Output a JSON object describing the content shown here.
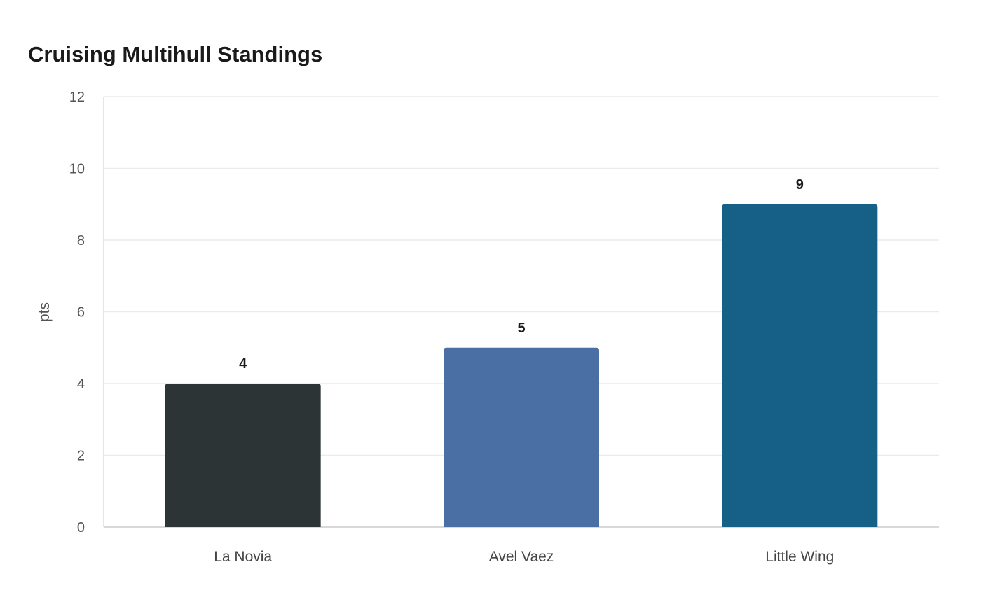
{
  "chart_data": {
    "type": "bar",
    "title": "Cruising Multihull Standings",
    "xlabel": "",
    "ylabel": "pts",
    "categories": [
      "La Novia",
      "Avel Vaez",
      "Little Wing"
    ],
    "values": [
      4,
      5,
      9
    ],
    "colors": [
      "#2d3436",
      "#4a6fa5",
      "#166088"
    ],
    "ylim": [
      0,
      12
    ],
    "yticks": [
      0,
      2,
      4,
      6,
      8,
      10,
      12
    ],
    "grid": true,
    "data_labels": true
  }
}
